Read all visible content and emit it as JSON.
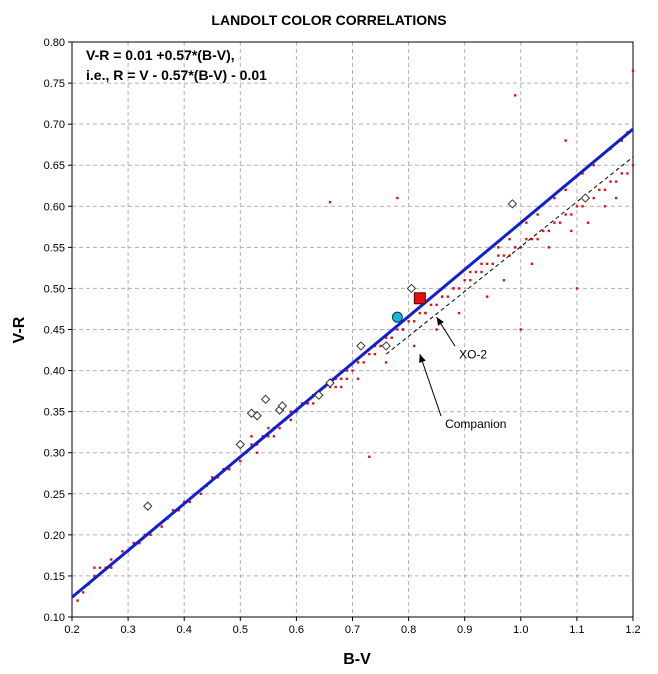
{
  "chart_data": {
    "type": "scatter",
    "title": "LANDOLT COLOR CORRELATIONS",
    "xlabel": "B-V",
    "ylabel": "V-R",
    "xlim": [
      0.2,
      1.2
    ],
    "ylim": [
      0.1,
      0.8
    ],
    "xticks": [
      "0.2",
      "0.3",
      "0.4",
      "0.5",
      "0.6",
      "0.7",
      "0.8",
      "0.9",
      "1.0",
      "1.1",
      "1.2"
    ],
    "yticks": [
      "0.10",
      "0.15",
      "0.20",
      "0.25",
      "0.30",
      "0.35",
      "0.40",
      "0.45",
      "0.50",
      "0.55",
      "0.60",
      "0.65",
      "0.70",
      "0.75",
      "0.80"
    ],
    "grid": true,
    "equation_lines": [
      "V-R = 0.01 +0.57*(B-V),",
      "i.e., R = V - 0.57*(B-V) - 0.01"
    ],
    "fit_line": {
      "slope": 0.57,
      "intercept": 0.01,
      "color": "#1020d0"
    },
    "dashed_line": {
      "x": [
        0.76,
        1.2
      ],
      "y": [
        0.42,
        0.66
      ],
      "color": "#000000"
    },
    "landolt_points": {
      "color": "#e01010",
      "x": [
        0.21,
        0.22,
        0.23,
        0.24,
        0.25,
        0.26,
        0.27,
        0.28,
        0.29,
        0.3,
        0.31,
        0.32,
        0.33,
        0.34,
        0.35,
        0.36,
        0.37,
        0.38,
        0.39,
        0.4,
        0.41,
        0.42,
        0.43,
        0.44,
        0.45,
        0.46,
        0.47,
        0.48,
        0.49,
        0.5,
        0.51,
        0.52,
        0.53,
        0.54,
        0.55,
        0.56,
        0.57,
        0.58,
        0.59,
        0.6,
        0.61,
        0.62,
        0.63,
        0.64,
        0.65,
        0.66,
        0.67,
        0.68,
        0.69,
        0.7,
        0.71,
        0.72,
        0.73,
        0.74,
        0.75,
        0.76,
        0.77,
        0.78,
        0.79,
        0.8,
        0.81,
        0.82,
        0.83,
        0.84,
        0.85,
        0.86,
        0.87,
        0.88,
        0.89,
        0.9,
        0.91,
        0.92,
        0.93,
        0.94,
        0.95,
        0.96,
        0.97,
        0.98,
        0.99,
        1.0,
        1.01,
        1.02,
        1.03,
        1.04,
        1.05,
        1.06,
        1.07,
        1.08,
        1.09,
        1.1,
        1.11,
        1.12,
        1.13,
        1.14,
        1.15,
        1.16,
        1.17,
        1.18,
        1.19,
        1.2,
        0.24,
        0.27,
        0.31,
        0.35,
        0.39,
        0.44,
        0.48,
        0.51,
        0.53,
        0.56,
        0.59,
        0.62,
        0.64,
        0.67,
        0.69,
        0.72,
        0.74,
        0.77,
        0.79,
        0.83,
        0.86,
        0.88,
        0.91,
        0.93,
        0.96,
        0.98,
        1.01,
        1.03,
        1.06,
        1.08,
        1.11,
        1.13,
        1.16,
        1.18,
        1.19,
        0.52,
        0.55,
        0.58,
        0.63,
        0.68,
        0.71,
        0.76,
        0.81,
        0.85,
        0.89,
        0.94,
        0.97,
        1.02,
        1.05,
        1.09,
        1.12,
        1.15,
        1.17,
        0.66,
        0.73,
        0.78,
        0.99,
        1.0,
        1.08,
        1.1,
        1.2
      ],
      "y": [
        0.12,
        0.13,
        0.14,
        0.15,
        0.16,
        0.16,
        0.16,
        0.17,
        0.18,
        0.18,
        0.19,
        0.19,
        0.2,
        0.2,
        0.21,
        0.21,
        0.22,
        0.23,
        0.23,
        0.24,
        0.24,
        0.25,
        0.25,
        0.26,
        0.27,
        0.27,
        0.28,
        0.28,
        0.29,
        0.29,
        0.3,
        0.31,
        0.31,
        0.32,
        0.32,
        0.33,
        0.33,
        0.34,
        0.35,
        0.35,
        0.36,
        0.36,
        0.37,
        0.37,
        0.38,
        0.38,
        0.39,
        0.39,
        0.4,
        0.4,
        0.41,
        0.42,
        0.42,
        0.43,
        0.43,
        0.44,
        0.44,
        0.45,
        0.45,
        0.46,
        0.46,
        0.47,
        0.47,
        0.48,
        0.48,
        0.49,
        0.49,
        0.5,
        0.5,
        0.51,
        0.51,
        0.52,
        0.52,
        0.53,
        0.53,
        0.54,
        0.54,
        0.54,
        0.55,
        0.55,
        0.56,
        0.56,
        0.56,
        0.57,
        0.57,
        0.58,
        0.58,
        0.59,
        0.59,
        0.6,
        0.6,
        0.61,
        0.61,
        0.62,
        0.62,
        0.63,
        0.63,
        0.64,
        0.64,
        0.65,
        0.16,
        0.17,
        0.19,
        0.21,
        0.23,
        0.26,
        0.28,
        0.3,
        0.3,
        0.32,
        0.34,
        0.36,
        0.37,
        0.38,
        0.39,
        0.41,
        0.42,
        0.44,
        0.45,
        0.47,
        0.49,
        0.5,
        0.52,
        0.53,
        0.55,
        0.56,
        0.58,
        0.59,
        0.61,
        0.62,
        0.64,
        0.65,
        0.67,
        0.68,
        0.69,
        0.32,
        0.33,
        0.34,
        0.36,
        0.38,
        0.39,
        0.41,
        0.43,
        0.45,
        0.47,
        0.49,
        0.51,
        0.53,
        0.55,
        0.57,
        0.58,
        0.6,
        0.61,
        0.605,
        0.295,
        0.61,
        0.735,
        0.45,
        0.68,
        0.5,
        0.765
      ]
    },
    "standard_stars": {
      "marker": "open diamond",
      "x": [
        0.335,
        0.5,
        0.52,
        0.53,
        0.545,
        0.57,
        0.575,
        0.64,
        0.66,
        0.715,
        0.76,
        0.78,
        0.805,
        0.985,
        1.115
      ],
      "y": [
        0.235,
        0.31,
        0.348,
        0.345,
        0.365,
        0.352,
        0.357,
        0.37,
        0.385,
        0.43,
        0.43,
        0.465,
        0.5,
        0.603,
        0.61
      ]
    },
    "companion_point": {
      "x": 0.78,
      "y": 0.465,
      "color": "#1ab8d8",
      "marker": "circle"
    },
    "xo2_point": {
      "x": 0.82,
      "y": 0.488,
      "color": "#e01010",
      "marker": "square"
    },
    "annotations": [
      {
        "text": "XO-2",
        "x": 0.89,
        "y": 0.415,
        "arrow_to": [
          0.85,
          0.465
        ]
      },
      {
        "text": "Companion",
        "x": 0.865,
        "y": 0.33,
        "arrow_to": [
          0.82,
          0.42
        ]
      }
    ]
  }
}
